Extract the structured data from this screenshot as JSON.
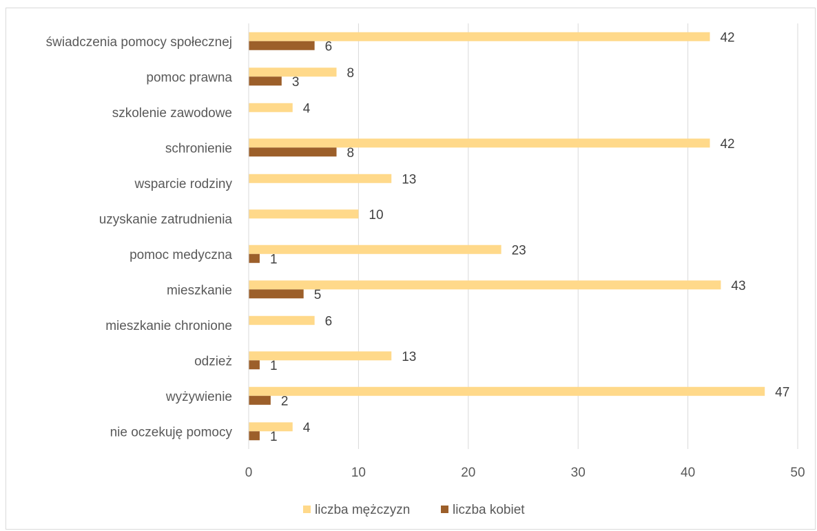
{
  "chart_data": {
    "type": "bar",
    "orientation": "horizontal",
    "categories": [
      "świadczenia pomocy społecznej",
      "pomoc prawna",
      "szkolenie zawodowe",
      "schronienie",
      "wsparcie rodziny",
      "uzyskanie zatrudnienia",
      "pomoc medyczna",
      "mieszkanie",
      "mieszkanie chronione",
      "odzież",
      "wyżywienie",
      "nie oczekuję pomocy"
    ],
    "series": [
      {
        "name": "liczba mężczyzn",
        "color": "#ffd98a",
        "values": [
          42,
          8,
          4,
          42,
          13,
          10,
          23,
          43,
          6,
          13,
          47,
          4
        ]
      },
      {
        "name": "liczba kobiet",
        "color": "#9c5f2a",
        "values": [
          6,
          3,
          null,
          8,
          null,
          null,
          1,
          5,
          null,
          1,
          2,
          1
        ]
      }
    ],
    "xlim": [
      0,
      50
    ],
    "xticks": [
      0,
      10,
      20,
      30,
      40,
      50
    ],
    "grid": "vertical",
    "legend": "bottom"
  }
}
